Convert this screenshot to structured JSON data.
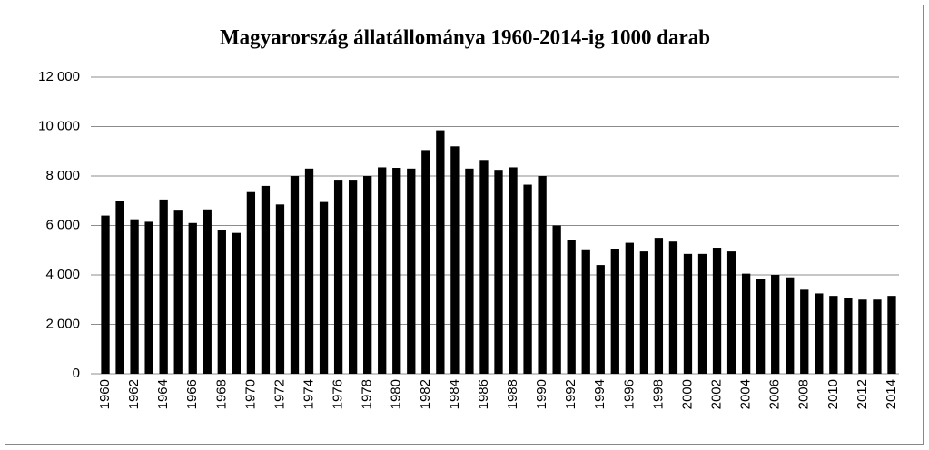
{
  "chart_data": {
    "type": "bar",
    "title": "Magyarország állatállománya 1960-2014-ig 1000 darab",
    "categories": [
      "1960",
      null,
      "1962",
      null,
      "1964",
      null,
      "1966",
      null,
      "1968",
      null,
      "1970",
      null,
      "1972",
      null,
      "1974",
      null,
      "1976",
      null,
      "1978",
      null,
      "1980",
      null,
      "1982",
      null,
      "1984",
      null,
      "1986",
      null,
      "1988",
      null,
      "1990",
      null,
      "1992",
      null,
      "1994",
      null,
      "1996",
      null,
      "1998",
      null,
      "2000",
      null,
      "2002",
      null,
      "2004",
      null,
      "2006",
      null,
      "2008",
      null,
      "2010",
      null,
      "2012",
      null,
      "2014"
    ],
    "values": [
      6400,
      7000,
      6250,
      6150,
      7050,
      6600,
      6100,
      6650,
      5800,
      5700,
      7350,
      7600,
      6850,
      8000,
      8300,
      6950,
      7850,
      7850,
      8000,
      8350,
      8330,
      8300,
      9050,
      9850,
      9200,
      8300,
      8650,
      8250,
      8350,
      7650,
      8000,
      6000,
      5400,
      5000,
      4400,
      5050,
      5300,
      4950,
      5500,
      5350,
      4850,
      4850,
      5100,
      4950,
      4050,
      3850,
      4000,
      3900,
      3400,
      3250,
      3150,
      3050,
      3000,
      3000,
      3150
    ],
    "color": "#000000",
    "ylim": [
      0,
      12000
    ],
    "yticks": [
      0,
      {
        "value": 2000,
        "label": "2 000"
      },
      {
        "value": 4000,
        "label": "4 000"
      },
      {
        "value": 6000,
        "label": "6 000"
      },
      {
        "value": 8000,
        "label": "8 000"
      },
      {
        "value": 10000,
        "label": "10 000"
      },
      {
        "value": 12000,
        "label": "12 000"
      }
    ],
    "grid": true
  }
}
